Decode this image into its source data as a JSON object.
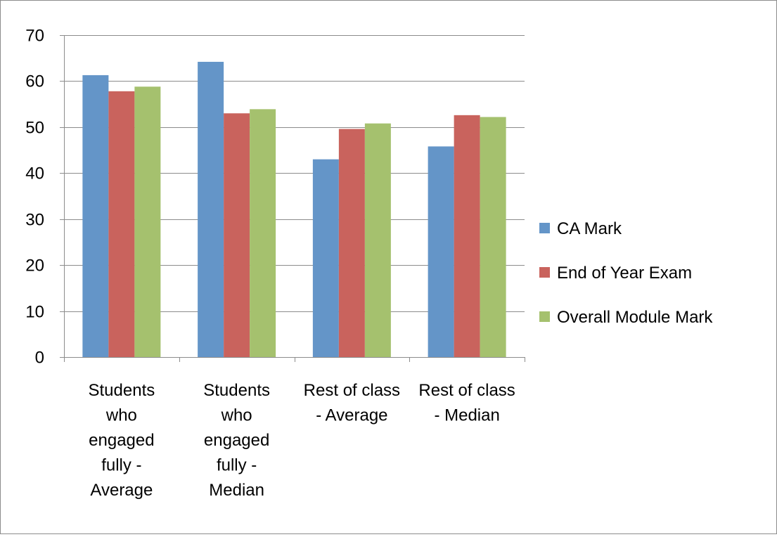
{
  "chart_data": {
    "type": "bar",
    "title": "",
    "xlabel": "",
    "ylabel": "",
    "ylim": [
      0,
      70
    ],
    "yticks": [
      0,
      10,
      20,
      30,
      40,
      50,
      60,
      70
    ],
    "grid": true,
    "legend_position": "right",
    "categories": [
      [
        "Students",
        "who",
        "engaged",
        "fully -",
        "Average"
      ],
      [
        "Students",
        "who",
        "engaged",
        "fully -",
        "Median"
      ],
      [
        "Rest of class",
        "- Average"
      ],
      [
        "Rest of class",
        "- Median"
      ]
    ],
    "series": [
      {
        "name": "CA Mark",
        "color": "#6495c8",
        "values": [
          61.3,
          64.2,
          43.0,
          45.8
        ]
      },
      {
        "name": "End of Year Exam",
        "color": "#c9635d",
        "values": [
          57.8,
          53.0,
          49.6,
          52.6
        ]
      },
      {
        "name": "Overall Module Mark",
        "color": "#a5c16e",
        "values": [
          58.8,
          53.9,
          50.8,
          52.2
        ]
      }
    ]
  }
}
